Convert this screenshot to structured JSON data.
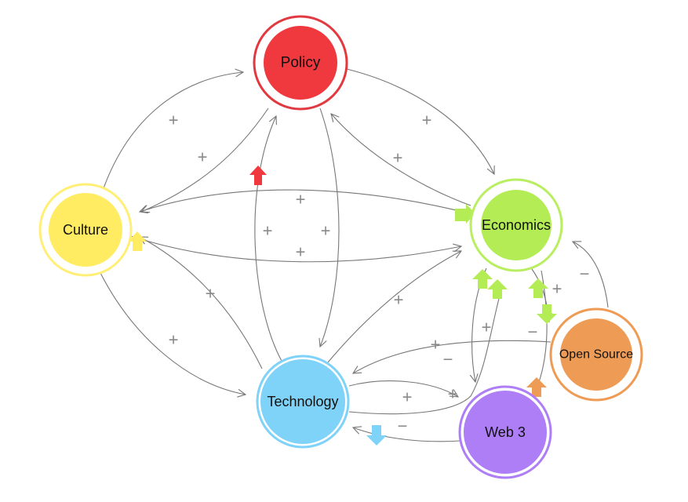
{
  "nodes": {
    "policy": {
      "label": "Policy",
      "color": "#f0383f",
      "ring": "#e23840"
    },
    "culture": {
      "label": "Culture",
      "color": "#ffec63",
      "ring": "#ffef77"
    },
    "economics": {
      "label": "Economics",
      "color": "#b3ec55",
      "ring": "#b8ee60"
    },
    "technology": {
      "label": "Technology",
      "color": "#7fd2f8",
      "ring": "#7fd2f8"
    },
    "web3": {
      "label": "Web 3",
      "color": "#ad7ef5",
      "ring": "#ad7ef5"
    },
    "open_source": {
      "label": "Open Source",
      "color": "#ee9c55",
      "ring": "#ee9c55"
    }
  },
  "signs": {
    "plus": "+",
    "minus": "−"
  },
  "edge_color": "#777777",
  "sign_color": "#8a8a8a"
}
